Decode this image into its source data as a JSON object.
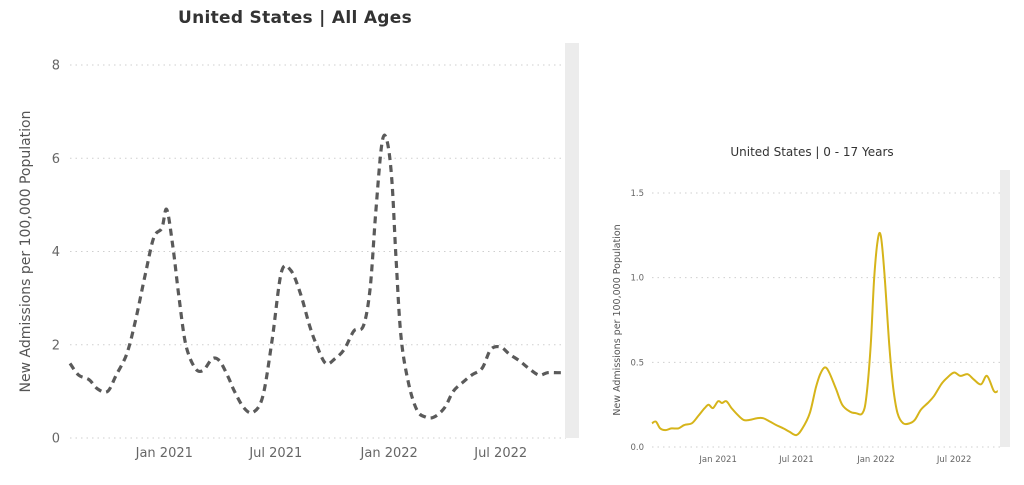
{
  "charts": [
    {
      "id": "all-ages",
      "title": "United States | All Ages",
      "color": "#5a5a5a",
      "dashed": true,
      "chart_data": {
        "type": "line",
        "title": "United States | All Ages",
        "xlabel": "",
        "ylabel": "New Admissions per 100,000 Population",
        "ylim": [
          0,
          8
        ],
        "yticks": [
          0,
          2,
          4,
          6,
          8
        ],
        "ytick_labels": [
          "0",
          "2",
          "4",
          "6",
          "8"
        ],
        "xlim": [
          "2020-08-01",
          "2022-10-15"
        ],
        "xticks": [
          "2021-01-01",
          "2021-07-01",
          "2022-01-01",
          "2022-07-01"
        ],
        "xtick_labels": [
          "Jan 2021",
          "Jul 2021",
          "Jan 2022",
          "Jul 2022"
        ],
        "grid": "horizontal dotted",
        "series": [
          {
            "x": [
              "2020-08-01",
              "2020-08-15",
              "2020-09-01",
              "2020-09-15",
              "2020-10-01",
              "2020-10-15",
              "2020-11-01",
              "2020-11-15",
              "2020-12-01",
              "2020-12-15",
              "2020-12-28",
              "2021-01-05",
              "2021-01-15",
              "2021-01-25",
              "2021-02-05",
              "2021-02-20",
              "2021-03-05",
              "2021-03-20",
              "2021-04-01",
              "2021-04-15",
              "2021-04-25",
              "2021-05-10",
              "2021-05-25",
              "2021-06-10",
              "2021-06-25",
              "2021-07-10",
              "2021-07-25",
              "2021-08-10",
              "2021-08-25",
              "2021-09-05",
              "2021-09-20",
              "2021-10-05",
              "2021-10-20",
              "2021-11-05",
              "2021-11-20",
              "2021-12-01",
              "2021-12-10",
              "2021-12-20",
              "2021-12-28",
              "2022-01-05",
              "2022-01-12",
              "2022-01-20",
              "2022-02-01",
              "2022-02-15",
              "2022-03-01",
              "2022-03-15",
              "2022-04-01",
              "2022-04-15",
              "2022-05-01",
              "2022-05-15",
              "2022-06-01",
              "2022-06-15",
              "2022-07-01",
              "2022-07-15",
              "2022-08-01",
              "2022-08-15",
              "2022-09-01",
              "2022-09-15",
              "2022-10-01",
              "2022-10-10"
            ],
            "y": [
              1.6,
              1.35,
              1.25,
              1.05,
              1.0,
              1.35,
              1.8,
              2.5,
              3.5,
              4.3,
              4.5,
              4.9,
              4.1,
              3.0,
              2.0,
              1.5,
              1.45,
              1.7,
              1.65,
              1.3,
              1.0,
              0.65,
              0.55,
              0.9,
              2.1,
              3.55,
              3.6,
              3.1,
              2.4,
              2.0,
              1.6,
              1.7,
              1.9,
              2.3,
              2.4,
              3.2,
              4.8,
              6.3,
              6.4,
              5.6,
              3.9,
              2.2,
              1.2,
              0.6,
              0.45,
              0.45,
              0.65,
              1.0,
              1.2,
              1.35,
              1.5,
              1.9,
              1.95,
              1.8,
              1.65,
              1.5,
              1.35,
              1.4,
              1.4,
              1.4
            ]
          }
        ]
      }
    },
    {
      "id": "age-0-17",
      "title": "United States | 0 - 17 Years",
      "color": "#d6b41a",
      "dashed": false,
      "chart_data": {
        "type": "line",
        "title": "United States | 0 - 17 Years",
        "xlabel": "",
        "ylabel": "New Admissions per 100,000 Population",
        "ylim": [
          0,
          1.5
        ],
        "yticks": [
          0,
          0.5,
          1.0,
          1.5
        ],
        "ytick_labels": [
          "0.0",
          "0.5",
          "1.0",
          "1.5"
        ],
        "xlim": [
          "2020-08-01",
          "2022-10-15"
        ],
        "xticks": [
          "2021-01-01",
          "2021-07-01",
          "2022-01-01",
          "2022-07-01"
        ],
        "xtick_labels": [
          "Jan 2021",
          "Jul 2021",
          "Jan 2022",
          "Jul 2022"
        ],
        "grid": "horizontal dotted",
        "series": [
          {
            "x": [
              "2020-08-01",
              "2020-08-10",
              "2020-08-20",
              "2020-09-01",
              "2020-09-15",
              "2020-10-01",
              "2020-10-15",
              "2020-11-01",
              "2020-11-15",
              "2020-12-01",
              "2020-12-10",
              "2020-12-20",
              "2021-01-01",
              "2021-01-10",
              "2021-01-20",
              "2021-02-01",
              "2021-02-15",
              "2021-03-01",
              "2021-03-15",
              "2021-04-01",
              "2021-04-15",
              "2021-05-01",
              "2021-05-15",
              "2021-06-01",
              "2021-06-15",
              "2021-07-01",
              "2021-07-15",
              "2021-08-01",
              "2021-08-15",
              "2021-08-25",
              "2021-09-05",
              "2021-09-15",
              "2021-10-01",
              "2021-10-15",
              "2021-11-01",
              "2021-11-15",
              "2021-12-01",
              "2021-12-10",
              "2021-12-20",
              "2021-12-28",
              "2022-01-05",
              "2022-01-12",
              "2022-01-20",
              "2022-02-01",
              "2022-02-10",
              "2022-02-20",
              "2022-03-05",
              "2022-03-20",
              "2022-04-01",
              "2022-04-15",
              "2022-05-01",
              "2022-05-15",
              "2022-06-01",
              "2022-06-15",
              "2022-07-01",
              "2022-07-15",
              "2022-08-01",
              "2022-08-15",
              "2022-09-01",
              "2022-09-15",
              "2022-10-01",
              "2022-10-10"
            ],
            "y": [
              0.14,
              0.15,
              0.11,
              0.1,
              0.11,
              0.11,
              0.13,
              0.14,
              0.18,
              0.23,
              0.25,
              0.23,
              0.27,
              0.26,
              0.27,
              0.23,
              0.19,
              0.16,
              0.16,
              0.17,
              0.17,
              0.15,
              0.13,
              0.11,
              0.09,
              0.07,
              0.11,
              0.2,
              0.35,
              0.43,
              0.47,
              0.44,
              0.34,
              0.25,
              0.21,
              0.2,
              0.2,
              0.3,
              0.6,
              1.0,
              1.22,
              1.25,
              1.05,
              0.6,
              0.35,
              0.2,
              0.14,
              0.14,
              0.16,
              0.22,
              0.26,
              0.3,
              0.37,
              0.41,
              0.44,
              0.42,
              0.43,
              0.4,
              0.37,
              0.42,
              0.33,
              0.33
            ]
          }
        ]
      }
    }
  ]
}
